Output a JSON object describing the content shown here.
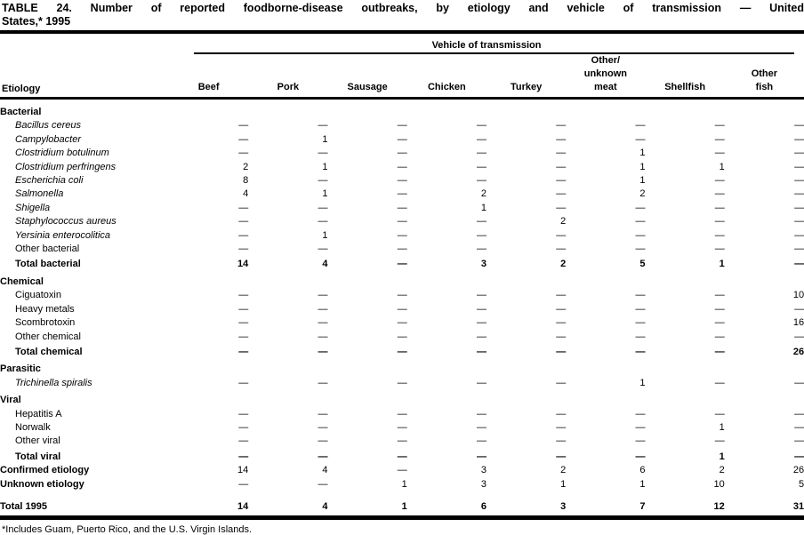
{
  "title": {
    "line1": "TABLE 24. Number of reported foodborne-disease outbreaks, by etiology and vehicle of transmission — United",
    "line2": "States,* 1995"
  },
  "table": {
    "vehicle_header": "Vehicle of transmission",
    "etiology_header": "Etiology",
    "columns": [
      [
        "Beef"
      ],
      [
        "Pork"
      ],
      [
        "Sausage"
      ],
      [
        "Chicken"
      ],
      [
        "Turkey"
      ],
      [
        "Other/",
        "unknown",
        "meat"
      ],
      [
        "Shellfish"
      ],
      [
        "Other",
        "fish"
      ]
    ],
    "rows": [
      {
        "label": "Bacterial",
        "type": "section",
        "values": []
      },
      {
        "label": "Bacillus cereus",
        "type": "italic",
        "values": [
          "—",
          "—",
          "—",
          "—",
          "—",
          "—",
          "—",
          "—"
        ]
      },
      {
        "label": "Campylobacter",
        "type": "italic",
        "values": [
          "—",
          "1",
          "—",
          "—",
          "—",
          "—",
          "—",
          "—"
        ]
      },
      {
        "label": "Clostridium botulinum",
        "type": "italic",
        "values": [
          "—",
          "—",
          "—",
          "—",
          "—",
          "1",
          "—",
          "—"
        ]
      },
      {
        "label": "Clostridium perfringens",
        "type": "italic",
        "values": [
          "2",
          "1",
          "—",
          "—",
          "—",
          "1",
          "1",
          "—"
        ]
      },
      {
        "label": "Escherichia coli",
        "type": "italic",
        "values": [
          "8",
          "—",
          "—",
          "—",
          "—",
          "1",
          "—",
          "—"
        ]
      },
      {
        "label": "Salmonella",
        "type": "italic",
        "values": [
          "4",
          "1",
          "—",
          "2",
          "—",
          "2",
          "—",
          "—"
        ]
      },
      {
        "label": "Shigella",
        "type": "italic",
        "values": [
          "—",
          "—",
          "—",
          "1",
          "—",
          "—",
          "—",
          "—"
        ]
      },
      {
        "label": "Staphylococcus aureus",
        "type": "italic",
        "values": [
          "—",
          "—",
          "—",
          "—",
          "2",
          "—",
          "—",
          "—"
        ]
      },
      {
        "label": "Yersinia enterocolitica",
        "type": "italic",
        "values": [
          "—",
          "1",
          "—",
          "—",
          "—",
          "—",
          "—",
          "—"
        ]
      },
      {
        "label": "Other bacterial",
        "type": "plain",
        "values": [
          "—",
          "—",
          "—",
          "—",
          "—",
          "—",
          "—",
          "—"
        ]
      },
      {
        "label": "Total bacterial",
        "type": "total",
        "values": [
          "14",
          "4",
          "—",
          "3",
          "2",
          "5",
          "1",
          "—"
        ]
      },
      {
        "label": "Chemical",
        "type": "section",
        "values": []
      },
      {
        "label": "Ciguatoxin",
        "type": "plain",
        "values": [
          "—",
          "—",
          "—",
          "—",
          "—",
          "—",
          "—",
          "10"
        ]
      },
      {
        "label": "Heavy metals",
        "type": "plain",
        "values": [
          "—",
          "—",
          "—",
          "—",
          "—",
          "—",
          "—",
          "—"
        ]
      },
      {
        "label": "Scombrotoxin",
        "type": "plain",
        "values": [
          "—",
          "—",
          "—",
          "—",
          "—",
          "—",
          "—",
          "16"
        ]
      },
      {
        "label": "Other chemical",
        "type": "plain",
        "values": [
          "—",
          "—",
          "—",
          "—",
          "—",
          "—",
          "—",
          "—"
        ]
      },
      {
        "label": "Total chemical",
        "type": "total",
        "values": [
          "—",
          "—",
          "—",
          "—",
          "—",
          "—",
          "—",
          "26"
        ]
      },
      {
        "label": "Parasitic",
        "type": "section",
        "values": []
      },
      {
        "label": "Trichinella spiralis",
        "type": "italic",
        "values": [
          "—",
          "—",
          "—",
          "—",
          "—",
          "1",
          "—",
          "—"
        ]
      },
      {
        "label": "Viral",
        "type": "section",
        "values": []
      },
      {
        "label": "Hepatitis A",
        "type": "plain",
        "values": [
          "—",
          "—",
          "—",
          "—",
          "—",
          "—",
          "—",
          "—"
        ]
      },
      {
        "label": "Norwalk",
        "type": "plain",
        "values": [
          "—",
          "—",
          "—",
          "—",
          "—",
          "—",
          "1",
          "—"
        ]
      },
      {
        "label": "Other viral",
        "type": "plain",
        "values": [
          "—",
          "—",
          "—",
          "—",
          "—",
          "—",
          "—",
          "—"
        ]
      },
      {
        "label": "Total viral",
        "type": "total",
        "values": [
          "—",
          "—",
          "—",
          "—",
          "—",
          "—",
          "1",
          "—"
        ]
      },
      {
        "label": "Confirmed etiology",
        "type": "summary",
        "values": [
          "14",
          "4",
          "—",
          "3",
          "2",
          "6",
          "2",
          "26"
        ]
      },
      {
        "label": "Unknown etiology",
        "type": "summary",
        "values": [
          "—",
          "—",
          "1",
          "3",
          "1",
          "1",
          "10",
          "5"
        ]
      },
      {
        "label": "Total 1995",
        "type": "grand",
        "values": [
          "14",
          "4",
          "1",
          "6",
          "3",
          "7",
          "12",
          "31"
        ]
      }
    ]
  },
  "footnote": "*Includes Guam, Puerto Rico, and the U.S. Virgin Islands."
}
